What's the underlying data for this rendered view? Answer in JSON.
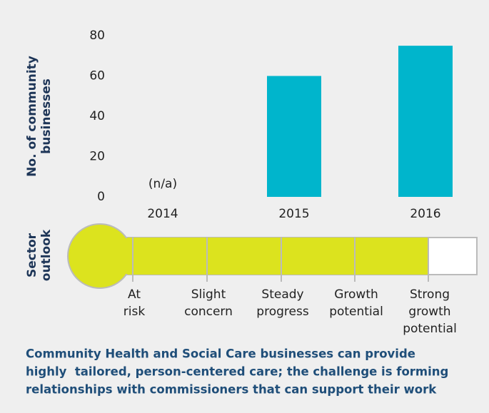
{
  "chart_data": {
    "type": "bar",
    "y_label": [
      "No. of community",
      "businesses"
    ],
    "categories": [
      "2014",
      "2015",
      "2016"
    ],
    "values": [
      null,
      60,
      75
    ],
    "color": "#00b5cc",
    "ylim": [
      0,
      80
    ],
    "yticks": [
      0,
      20,
      40,
      60,
      80
    ],
    "annotations": [
      {
        "category": 0,
        "text": "(n/a)"
      }
    ],
    "outlook": {
      "label": [
        "Sector",
        "outlook"
      ],
      "levels": [
        [
          "At",
          "risk"
        ],
        [
          "Slight",
          "concern"
        ],
        [
          "Steady",
          "progress"
        ],
        [
          "Growth",
          "potential"
        ],
        [
          "Strong",
          "growth",
          "potential"
        ]
      ],
      "value": 3,
      "color": "#dce31e"
    },
    "caption": [
      "Community Health and Social Care businesses can provide",
      "highly  tailored, person-centered care; the challenge is forming",
      "relationships with commissioners that can support their work"
    ]
  }
}
